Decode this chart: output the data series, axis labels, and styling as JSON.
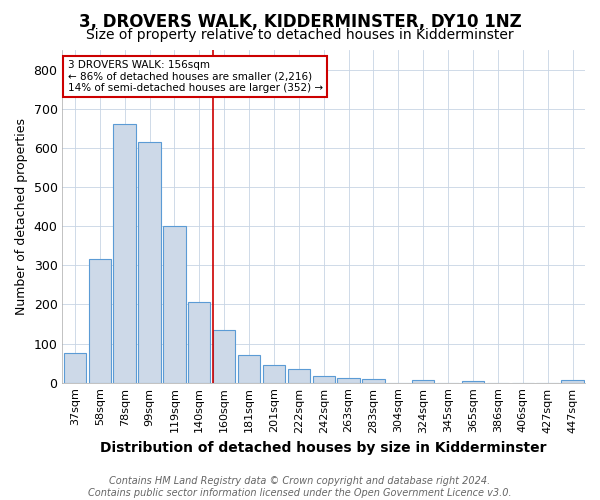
{
  "title": "3, DROVERS WALK, KIDDERMINSTER, DY10 1NZ",
  "subtitle": "Size of property relative to detached houses in Kidderminster",
  "xlabel": "Distribution of detached houses by size in Kidderminster",
  "ylabel": "Number of detached properties",
  "categories": [
    "37sqm",
    "58sqm",
    "78sqm",
    "99sqm",
    "119sqm",
    "140sqm",
    "160sqm",
    "181sqm",
    "201sqm",
    "222sqm",
    "242sqm",
    "263sqm",
    "283sqm",
    "304sqm",
    "324sqm",
    "345sqm",
    "365sqm",
    "386sqm",
    "406sqm",
    "427sqm",
    "447sqm"
  ],
  "values": [
    75,
    315,
    660,
    615,
    400,
    205,
    135,
    70,
    45,
    35,
    18,
    12,
    10,
    0,
    8,
    0,
    5,
    0,
    0,
    0,
    8
  ],
  "bar_color": "#cdd9e8",
  "bar_edge_color": "#5b9bd5",
  "red_line_index": 6,
  "annotation_text": "3 DROVERS WALK: 156sqm\n← 86% of detached houses are smaller (2,216)\n14% of semi-detached houses are larger (352) →",
  "annotation_box_color": "#ffffff",
  "annotation_box_edge_color": "#cc0000",
  "footer_text": "Contains HM Land Registry data © Crown copyright and database right 2024.\nContains public sector information licensed under the Open Government Licence v3.0.",
  "ylim": [
    0,
    850
  ],
  "yticks": [
    0,
    100,
    200,
    300,
    400,
    500,
    600,
    700,
    800
  ],
  "title_fontsize": 12,
  "subtitle_fontsize": 10,
  "xlabel_fontsize": 10,
  "ylabel_fontsize": 9,
  "tick_fontsize": 8,
  "footer_fontsize": 7,
  "background_color": "#ffffff",
  "grid_color": "#c8d4e4"
}
